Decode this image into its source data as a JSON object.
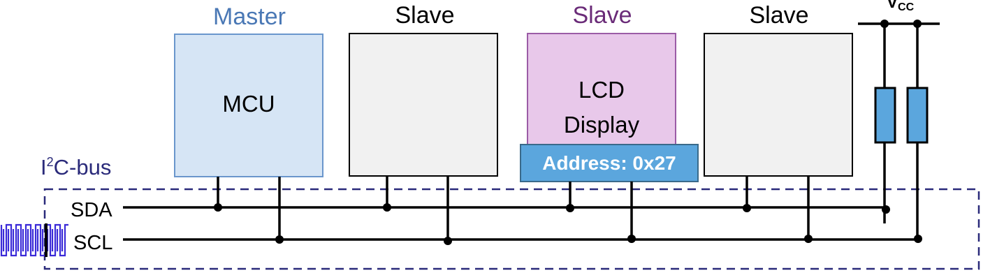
{
  "colors": {
    "master_title": "#4a78b5",
    "master_fill": "#d6e5f5",
    "master_stroke": "#6a96cc",
    "slave_title": "#000000",
    "slave_fill": "#f1f1f1",
    "lcd_title": "#6a2b78",
    "lcd_fill": "#e8c8ea",
    "lcd_stroke": "#9b5ca6",
    "address_fill": "#5ba6dd",
    "address_stroke": "#3a6a8a",
    "address_text": "#ffffff",
    "bus_label": "#2a2a7a",
    "bus_border": "#2a2a7a",
    "resistor_fill": "#5ba6dd",
    "clock_wave": "#3a2ad8",
    "wire": "#000000"
  },
  "devices": {
    "master": {
      "title": "Master",
      "body": "MCU"
    },
    "slave1": {
      "title": "Slave",
      "body": ""
    },
    "lcd": {
      "title": "Slave",
      "body_line1": "LCD",
      "body_line2": "Display",
      "address": "Address: 0x27"
    },
    "slave3": {
      "title": "Slave",
      "body": ""
    }
  },
  "bus": {
    "label_prefix": "I",
    "label_superscript": "2",
    "label_suffix": "C-bus",
    "sda_label": "SDA",
    "scl_label": "SCL"
  },
  "power": {
    "label_main": "V",
    "label_sub": "CC"
  }
}
